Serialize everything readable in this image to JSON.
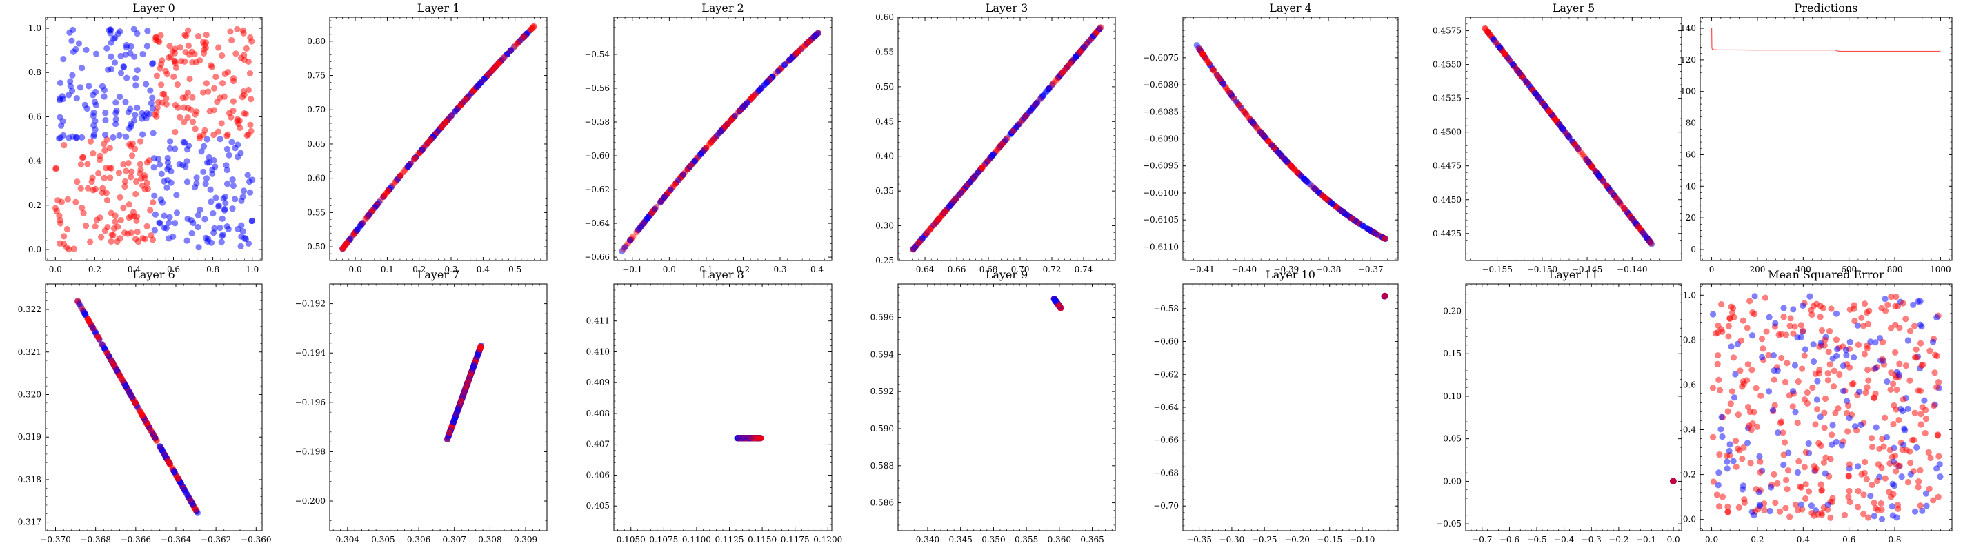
{
  "colors": {
    "red": "#ff0000",
    "blue": "#0000ff",
    "line": "#ff4d4d"
  },
  "chart_data": [
    {
      "id": "layer0",
      "type": "scatter",
      "title": "Layer 0",
      "xlim": [
        -0.05,
        1.05
      ],
      "ylim": [
        -0.05,
        1.05
      ],
      "xticks": [
        0.0,
        0.2,
        0.4,
        0.6,
        0.8,
        1.0
      ],
      "xtick_labels": [
        "0.0",
        "0.2",
        "0.4",
        "0.6",
        "0.8",
        "1.0"
      ],
      "yticks": [
        0.0,
        0.2,
        0.4,
        0.6,
        0.8,
        1.0
      ],
      "ytick_labels": [
        "0.0",
        "0.2",
        "0.4",
        "0.6",
        "0.8",
        "1.0"
      ],
      "points": {
        "gen": "xor",
        "n": 500,
        "seed": 11
      }
    },
    {
      "id": "layer1",
      "type": "scatter",
      "title": "Layer 1",
      "xlim": [
        -0.08,
        0.6
      ],
      "ylim": [
        0.48,
        0.835
      ],
      "xticks": [
        0.0,
        0.1,
        0.2,
        0.3,
        0.4,
        0.5
      ],
      "xtick_labels": [
        "0.0",
        "0.1",
        "0.2",
        "0.3",
        "0.4",
        "0.5"
      ],
      "yticks": [
        0.5,
        0.55,
        0.6,
        0.65,
        0.7,
        0.75,
        0.8
      ],
      "ytick_labels": [
        "0.50",
        "0.55",
        "0.60",
        "0.65",
        "0.70",
        "0.75",
        "0.80"
      ],
      "points": {
        "gen": "curve",
        "x": [
          -0.04,
          0.56
        ],
        "y": [
          0.497,
          0.822
        ],
        "bend": 0.01,
        "n": 300,
        "seed": 21
      }
    },
    {
      "id": "layer2",
      "type": "scatter",
      "title": "Layer 2",
      "xlim": [
        -0.15,
        0.44
      ],
      "ylim": [
        -0.662,
        -0.518
      ],
      "xticks": [
        -0.1,
        0.0,
        0.1,
        0.2,
        0.3,
        0.4
      ],
      "xtick_labels": [
        "−0.1",
        "0.0",
        "0.1",
        "0.2",
        "0.3",
        "0.4"
      ],
      "yticks": [
        -0.66,
        -0.64,
        -0.62,
        -0.6,
        -0.58,
        -0.56,
        -0.54
      ],
      "ytick_labels": [
        "−0.66",
        "−0.64",
        "−0.62",
        "−0.60",
        "−0.58",
        "−0.56",
        "−0.54"
      ],
      "points": {
        "gen": "curve",
        "x": [
          -0.13,
          0.405
        ],
        "y": [
          -0.657,
          -0.527
        ],
        "bend": 0.006,
        "n": 300,
        "seed": 31
      }
    },
    {
      "id": "layer3",
      "type": "scatter",
      "title": "Layer 3",
      "xlim": [
        0.623,
        0.76
      ],
      "ylim": [
        0.25,
        0.6
      ],
      "xticks": [
        0.64,
        0.66,
        0.68,
        0.7,
        0.72,
        0.74
      ],
      "xtick_labels": [
        "0.64",
        "0.66",
        "0.68",
        "0.70",
        "0.72",
        "0.74"
      ],
      "yticks": [
        0.25,
        0.3,
        0.35,
        0.4,
        0.45,
        0.5,
        0.55,
        0.6
      ],
      "ytick_labels": [
        "0.25",
        "0.30",
        "0.35",
        "0.40",
        "0.45",
        "0.50",
        "0.55",
        "0.60"
      ],
      "points": {
        "gen": "curve",
        "x": [
          0.631,
          0.751
        ],
        "y": [
          0.262,
          0.586
        ],
        "bend": 0.0,
        "n": 300,
        "seed": 41
      }
    },
    {
      "id": "layer4",
      "type": "scatter",
      "title": "Layer 4",
      "xlim": [
        -0.4145,
        -0.3635
      ],
      "ylim": [
        -0.61125,
        -0.60675
      ],
      "xticks": [
        -0.41,
        -0.4,
        -0.39,
        -0.38,
        -0.37
      ],
      "xtick_labels": [
        "−0.41",
        "−0.40",
        "−0.39",
        "−0.38",
        "−0.37"
      ],
      "yticks": [
        -0.611,
        -0.6105,
        -0.61,
        -0.6095,
        -0.609,
        -0.6085,
        -0.608,
        -0.6075
      ],
      "ytick_labels": [
        "−0.6110",
        "−0.6105",
        "−0.6100",
        "−0.6095",
        "−0.6090",
        "−0.6085",
        "−0.6080",
        "−0.6075"
      ],
      "points": {
        "gen": "curve",
        "x": [
          -0.4115,
          -0.3665
        ],
        "y": [
          -0.60723,
          -0.61085
        ],
        "bend": -0.00045,
        "n": 300,
        "seed": 51
      }
    },
    {
      "id": "layer5",
      "type": "scatter",
      "title": "Layer 5",
      "xlim": [
        -0.1585,
        -0.1345
      ],
      "ylim": [
        0.4405,
        0.4585
      ],
      "xticks": [
        -0.155,
        -0.15,
        -0.145,
        -0.14
      ],
      "xtick_labels": [
        "−0.155",
        "−0.150",
        "−0.145",
        "−0.140"
      ],
      "yticks": [
        0.4425,
        0.445,
        0.4475,
        0.45,
        0.4525,
        0.455,
        0.4575
      ],
      "ytick_labels": [
        "0.4425",
        "0.4450",
        "0.4475",
        "0.4500",
        "0.4525",
        "0.4550",
        "0.4575"
      ],
      "points": {
        "gen": "curve",
        "x": [
          -0.1565,
          -0.1378
        ],
        "y": [
          0.4578,
          0.4417
        ],
        "bend": 0.0,
        "n": 300,
        "seed": 61
      }
    },
    {
      "id": "predictions",
      "type": "line",
      "title": "Predictions",
      "xlim": [
        -50,
        1050
      ],
      "ylim": [
        -7,
        147
      ],
      "xticks": [
        0,
        200,
        400,
        600,
        800,
        1000
      ],
      "xtick_labels": [
        "0",
        "200",
        "400",
        "600",
        "800",
        "1000"
      ],
      "yticks": [
        0,
        20,
        40,
        60,
        80,
        100,
        120,
        140
      ],
      "ytick_labels": [
        "0",
        "20",
        "40",
        "60",
        "80",
        "100",
        "120",
        "140"
      ],
      "x": [
        0,
        1,
        2,
        3,
        4,
        5,
        6,
        8,
        10,
        12,
        15,
        20,
        30,
        60,
        100,
        200,
        300,
        400,
        500,
        540,
        550,
        560,
        600,
        700,
        800,
        900,
        1000
      ],
      "y": [
        140,
        128,
        127,
        126.8,
        126.7,
        126.6,
        126.5,
        126.5,
        126.5,
        126.4,
        126.4,
        126.4,
        126.3,
        126.3,
        126.3,
        126.2,
        126.2,
        126.2,
        126.2,
        126.2,
        125.6,
        125.4,
        125.4,
        125.4,
        125.4,
        125.4,
        125.4
      ]
    },
    {
      "id": "layer6",
      "type": "scatter",
      "title": "Layer 6",
      "xlim": [
        -0.3705,
        -0.3597
      ],
      "ylim": [
        0.3168,
        0.3226
      ],
      "xticks": [
        -0.37,
        -0.368,
        -0.366,
        -0.364,
        -0.362,
        -0.36
      ],
      "xtick_labels": [
        "−0.370",
        "−0.368",
        "−0.366",
        "−0.364",
        "−0.362",
        "−0.360"
      ],
      "yticks": [
        0.317,
        0.318,
        0.319,
        0.32,
        0.321,
        0.322
      ],
      "ytick_labels": [
        "0.317",
        "0.318",
        "0.319",
        "0.320",
        "0.321",
        "0.322"
      ],
      "points": {
        "gen": "curve",
        "x": [
          -0.3689,
          -0.3629
        ],
        "y": [
          0.3222,
          0.3172
        ],
        "bend": 0.0,
        "n": 300,
        "seed": 71
      }
    },
    {
      "id": "layer7",
      "type": "scatter",
      "title": "Layer 7",
      "xlim": [
        0.3035,
        0.3096
      ],
      "ylim": [
        -0.2012,
        -0.1912
      ],
      "xticks": [
        0.304,
        0.305,
        0.306,
        0.307,
        0.308,
        0.309
      ],
      "xtick_labels": [
        "0.304",
        "0.305",
        "0.306",
        "0.307",
        "0.308",
        "0.309"
      ],
      "yticks": [
        -0.2,
        -0.198,
        -0.196,
        -0.194,
        -0.192
      ],
      "ytick_labels": [
        "−0.200",
        "−0.198",
        "−0.196",
        "−0.194",
        "−0.192"
      ],
      "points": {
        "gen": "curve",
        "x": [
          0.3068,
          0.30775
        ],
        "y": [
          -0.1975,
          -0.1937
        ],
        "bend": 0.0,
        "n": 300,
        "seed": 81
      }
    },
    {
      "id": "layer8",
      "type": "scatter",
      "title": "Layer 8",
      "xlim": [
        0.1037,
        0.1203
      ],
      "ylim": [
        0.4042,
        0.4122
      ],
      "xticks": [
        0.105,
        0.1075,
        0.11,
        0.1125,
        0.115,
        0.1175,
        0.12
      ],
      "xtick_labels": [
        "0.1050",
        "0.1075",
        "0.1100",
        "0.1125",
        "0.1150",
        "0.1175",
        "0.1200"
      ],
      "yticks": [
        0.405,
        0.406,
        0.407,
        0.408,
        0.409,
        0.41,
        0.411
      ],
      "ytick_labels": [
        "0.405",
        "0.406",
        "0.407",
        "0.408",
        "0.409",
        "0.410",
        "0.411"
      ],
      "points": {
        "gen": "curve",
        "x": [
          0.1131,
          0.1149
        ],
        "y": [
          0.4072,
          0.4072
        ],
        "bend": 0.0,
        "n": 300,
        "seed": 91
      }
    },
    {
      "id": "layer9",
      "type": "scatter",
      "title": "Layer 9",
      "xlim": [
        0.3355,
        0.3685
      ],
      "ylim": [
        0.5845,
        0.5978
      ],
      "xticks": [
        0.34,
        0.345,
        0.35,
        0.355,
        0.36,
        0.365
      ],
      "xtick_labels": [
        "0.340",
        "0.345",
        "0.350",
        "0.355",
        "0.360",
        "0.365"
      ],
      "yticks": [
        0.586,
        0.588,
        0.59,
        0.592,
        0.594,
        0.596
      ],
      "ytick_labels": [
        "0.586",
        "0.588",
        "0.590",
        "0.592",
        "0.594",
        "0.596"
      ],
      "points": {
        "gen": "curve",
        "x": [
          0.3592,
          0.3602
        ],
        "y": [
          0.597,
          0.5965
        ],
        "bend": 0.0,
        "n": 300,
        "seed": 101
      }
    },
    {
      "id": "layer10",
      "type": "scatter",
      "title": "Layer 10",
      "xlim": [
        -0.375,
        -0.045
      ],
      "ylim": [
        -0.715,
        -0.565
      ],
      "xticks": [
        -0.35,
        -0.3,
        -0.25,
        -0.2,
        -0.15,
        -0.1
      ],
      "xtick_labels": [
        "−0.35",
        "−0.30",
        "−0.25",
        "−0.20",
        "−0.15",
        "−0.10"
      ],
      "yticks": [
        -0.7,
        -0.68,
        -0.66,
        -0.64,
        -0.62,
        -0.6,
        -0.58
      ],
      "ytick_labels": [
        "−0.70",
        "−0.68",
        "−0.66",
        "−0.64",
        "−0.62",
        "−0.60",
        "−0.58"
      ],
      "points": {
        "gen": "curve",
        "x": [
          -0.066,
          -0.065
        ],
        "y": [
          -0.5725,
          -0.5723
        ],
        "bend": 0.0,
        "n": 60,
        "seed": 111
      }
    },
    {
      "id": "layer11",
      "type": "scatter",
      "title": "Layer 11",
      "xlim": [
        -0.76,
        0.03
      ],
      "ylim": [
        -0.058,
        0.232
      ],
      "xticks": [
        -0.7,
        -0.6,
        -0.5,
        -0.4,
        -0.3,
        -0.2,
        -0.1,
        0.0
      ],
      "xtick_labels": [
        "−0.7",
        "−0.6",
        "−0.5",
        "−0.4",
        "−0.3",
        "−0.2",
        "−0.1",
        "0.0"
      ],
      "yticks": [
        -0.05,
        0.0,
        0.05,
        0.1,
        0.15,
        0.2
      ],
      "ytick_labels": [
        "−0.05",
        "0.00",
        "0.05",
        "0.10",
        "0.15",
        "0.20"
      ],
      "points": {
        "gen": "curve",
        "x": [
          -0.001,
          0.0
        ],
        "y": [
          0.0,
          0.0002
        ],
        "bend": 0.0,
        "n": 40,
        "seed": 121
      }
    },
    {
      "id": "mse",
      "type": "scatter",
      "title": "Mean Squared Error",
      "xlim": [
        -0.05,
        1.05
      ],
      "ylim": [
        -0.05,
        1.05
      ],
      "xticks": [
        0.0,
        0.2,
        0.4,
        0.6,
        0.8
      ],
      "xtick_labels": [
        "0.0",
        "0.2",
        "0.4",
        "0.6",
        "0.8"
      ],
      "yticks": [
        0.0,
        0.2,
        0.4,
        0.6,
        0.8,
        1.0
      ],
      "ytick_labels": [
        "0.0",
        "0.2",
        "0.4",
        "0.6",
        "0.8",
        "1.0"
      ],
      "points": {
        "gen": "random",
        "n": 500,
        "seed": 131,
        "blue_frac": 0.3
      }
    }
  ]
}
